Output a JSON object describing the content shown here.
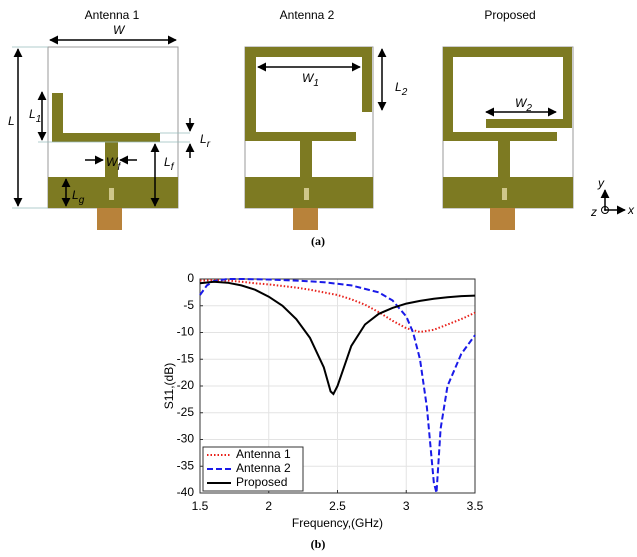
{
  "diagrams": {
    "panel_label": "(a)",
    "antennas": [
      {
        "title": "Antenna 1"
      },
      {
        "title": "Antenna 2"
      },
      {
        "title": "Proposed"
      }
    ],
    "dimensions": [
      {
        "symbol": "W"
      },
      {
        "symbol": "L"
      },
      {
        "symbol": "L",
        "sub": "1"
      },
      {
        "symbol": "L",
        "sub": "r"
      },
      {
        "symbol": "W",
        "sub": "f"
      },
      {
        "symbol": "L",
        "sub": "f"
      },
      {
        "symbol": "L",
        "sub": "g"
      },
      {
        "symbol": "W",
        "sub": "1"
      },
      {
        "symbol": "L",
        "sub": "2"
      },
      {
        "symbol": "W",
        "sub": "2"
      }
    ],
    "axes": {
      "y": "y",
      "z": "z",
      "x": "x"
    }
  },
  "panel_b_label": "(b)",
  "chart_data": {
    "type": "line",
    "xlabel": "Frequency,(GHz)",
    "ylabel": "S11,(dB)",
    "xlim": [
      1.5,
      3.5
    ],
    "xticks": [
      1.5,
      2,
      2.5,
      3,
      3.5
    ],
    "ylim": [
      -40,
      0
    ],
    "yticks": [
      0,
      -5,
      -10,
      -15,
      -20,
      -25,
      -30,
      -35,
      -40
    ],
    "grid": true,
    "legend": "lower-left",
    "series": [
      {
        "name": "Antenna 1",
        "color": "#e8201a",
        "linestyle": "dotted",
        "x": [
          1.5,
          1.6,
          1.7,
          1.8,
          1.9,
          2.0,
          2.1,
          2.2,
          2.3,
          2.4,
          2.5,
          2.6,
          2.7,
          2.8,
          2.9,
          3.0,
          3.1,
          3.2,
          3.3,
          3.4,
          3.5
        ],
        "values": [
          -0.3,
          -0.2,
          -0.3,
          -0.5,
          -0.8,
          -1.0,
          -1.3,
          -1.6,
          -2.0,
          -2.5,
          -3.0,
          -3.8,
          -4.8,
          -6.2,
          -7.8,
          -9.2,
          -9.9,
          -9.5,
          -8.5,
          -7.5,
          -6.3
        ]
      },
      {
        "name": "Antenna 2",
        "color": "#1a1ae8",
        "linestyle": "dashed",
        "x": [
          1.5,
          1.55,
          1.6,
          1.7,
          1.8,
          2.0,
          2.2,
          2.4,
          2.6,
          2.8,
          2.9,
          3.0,
          3.05,
          3.1,
          3.15,
          3.2,
          3.22,
          3.25,
          3.3,
          3.4,
          3.5
        ],
        "values": [
          -3,
          -1.2,
          -0.4,
          0,
          0,
          -0.1,
          -0.3,
          -0.6,
          -1.2,
          -2.5,
          -4,
          -7,
          -10,
          -15,
          -24,
          -38,
          -40,
          -28,
          -20,
          -14,
          -10.5
        ]
      },
      {
        "name": "Proposed",
        "color": "#000000",
        "linestyle": "solid",
        "x": [
          1.5,
          1.6,
          1.7,
          1.8,
          1.9,
          2.0,
          2.1,
          2.2,
          2.3,
          2.4,
          2.45,
          2.47,
          2.5,
          2.6,
          2.7,
          2.8,
          2.9,
          3.0,
          3.1,
          3.2,
          3.3,
          3.4,
          3.5
        ],
        "values": [
          -0.8,
          -0.5,
          -0.7,
          -1.2,
          -2,
          -3.3,
          -5,
          -7.5,
          -11,
          -16.5,
          -21,
          -21.5,
          -20,
          -12.5,
          -8.5,
          -6.5,
          -5.4,
          -4.6,
          -4.1,
          -3.7,
          -3.4,
          -3.2,
          -3.1
        ]
      }
    ]
  }
}
